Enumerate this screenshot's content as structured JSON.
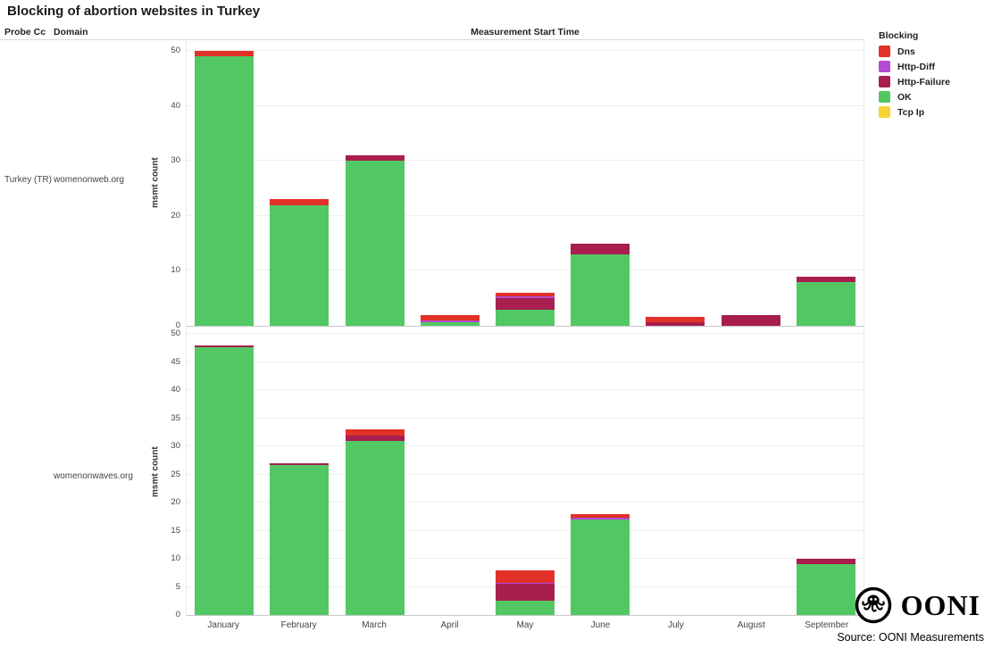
{
  "title": "Blocking of abortion websites in Turkey",
  "header": {
    "probe_cc": "Probe Cc",
    "domain": "Domain",
    "x_axis": "Measurement Start Time"
  },
  "rows": {
    "probe_cc": "Turkey (TR)",
    "domains": [
      "womenonweb.org",
      "womenonwaves.org"
    ]
  },
  "legend": {
    "title": "Blocking",
    "items": [
      {
        "label": "Dns",
        "color": "#e23129"
      },
      {
        "label": "Http-Diff",
        "color": "#b44bd2"
      },
      {
        "label": "Http-Failure",
        "color": "#a71e4f"
      },
      {
        "label": "OK",
        "color": "#52c864"
      },
      {
        "label": "Tcp Ip",
        "color": "#f6d433"
      }
    ]
  },
  "footer": {
    "logo_text": "OONI",
    "source": "Source: OONI Measurements"
  },
  "chart_data": [
    {
      "type": "bar",
      "stacked": true,
      "facet_domain": "womenonweb.org",
      "title": "",
      "xlabel": "Measurement Start Time",
      "ylabel": "msmt count",
      "ylim": [
        0,
        52
      ],
      "yticks": [
        0,
        10,
        20,
        30,
        40,
        50
      ],
      "grid": true,
      "legend_position": "right",
      "categories": [
        "January",
        "February",
        "March",
        "April",
        "May",
        "June",
        "July",
        "August",
        "September"
      ],
      "series": [
        {
          "name": "Tcp Ip",
          "values": [
            0,
            0,
            0,
            0,
            0,
            0,
            0,
            0,
            0
          ]
        },
        {
          "name": "OK",
          "values": [
            49,
            22,
            30,
            0.7,
            3,
            13,
            0,
            0,
            8
          ]
        },
        {
          "name": "Http-Failure",
          "values": [
            0,
            0,
            1,
            0,
            2,
            2,
            0.7,
            2,
            1
          ]
        },
        {
          "name": "Http-Diff",
          "values": [
            0,
            0,
            0,
            0.25,
            0.3,
            0,
            0,
            0,
            0
          ]
        },
        {
          "name": "Dns",
          "values": [
            1,
            1,
            0,
            1,
            0.7,
            0,
            1,
            0,
            0
          ]
        }
      ]
    },
    {
      "type": "bar",
      "stacked": true,
      "facet_domain": "womenonwaves.org",
      "title": "",
      "xlabel": "Measurement Start Time",
      "ylabel": "msmt count",
      "ylim": [
        0,
        51
      ],
      "yticks": [
        0,
        5,
        10,
        15,
        20,
        25,
        30,
        35,
        40,
        45,
        50
      ],
      "grid": true,
      "legend_position": "right",
      "categories": [
        "January",
        "February",
        "March",
        "April",
        "May",
        "June",
        "July",
        "August",
        "September"
      ],
      "series": [
        {
          "name": "Tcp Ip",
          "values": [
            0,
            0,
            0,
            0,
            0,
            0,
            0,
            0,
            0
          ]
        },
        {
          "name": "OK",
          "values": [
            47.7,
            26.7,
            31,
            0,
            2.5,
            17,
            0,
            0,
            9
          ]
        },
        {
          "name": "Http-Failure",
          "values": [
            0.3,
            0.3,
            1,
            0,
            3,
            0,
            0,
            0,
            1
          ]
        },
        {
          "name": "Http-Diff",
          "values": [
            0,
            0,
            0,
            0,
            0.3,
            0.3,
            0,
            0,
            0
          ]
        },
        {
          "name": "Dns",
          "values": [
            0,
            0,
            1,
            0,
            2.2,
            0.7,
            0,
            0,
            0
          ]
        }
      ]
    }
  ]
}
